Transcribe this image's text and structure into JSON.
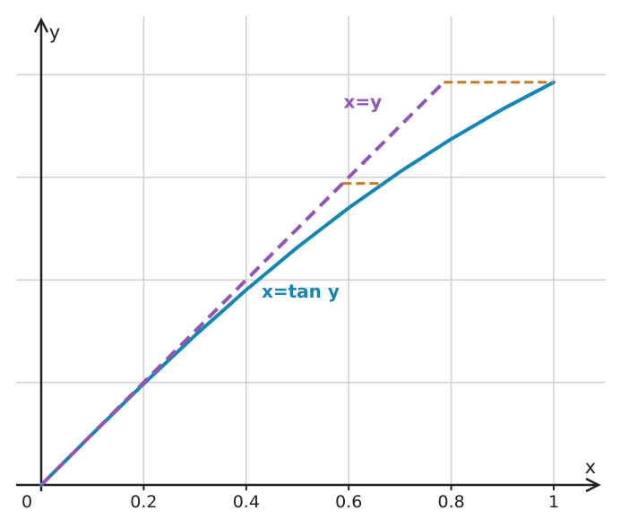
{
  "chart_data": {
    "type": "line",
    "xlabel": "x",
    "ylabel": "y",
    "xlim": [
      0,
      1.08
    ],
    "ylim": [
      0,
      0.88
    ],
    "x_ticks": [
      0,
      0.2,
      0.4,
      0.6,
      0.8,
      1
    ],
    "x_tick_labels": [
      "0",
      "0.2",
      "0.4",
      "0.6",
      "0.8",
      "1"
    ],
    "y_gridlines": [
      0.2,
      0.4,
      0.6,
      0.8
    ],
    "grid": true,
    "series": [
      {
        "name": "x=tan y",
        "style": "solid",
        "color": "#0f87b8",
        "x": [
          0,
          0.1,
          0.2,
          0.3,
          0.4,
          0.5,
          0.6,
          0.7,
          0.8,
          0.9,
          1.0
        ],
        "y": [
          0,
          0.0997,
          0.1974,
          0.2915,
          0.3805,
          0.4636,
          0.5404,
          0.6107,
          0.6747,
          0.7328,
          0.7854
        ]
      },
      {
        "name": "x=y",
        "style": "dashed",
        "color": "#9355b8",
        "x": [
          0,
          0.7854
        ],
        "y": [
          0,
          0.7854
        ]
      }
    ],
    "horizontal_segments": [
      {
        "y": 0.588,
        "x_from": 0.588,
        "x_to": 0.6682,
        "color": "#c77a1e"
      },
      {
        "y": 0.7854,
        "x_from": 0.7854,
        "x_to": 1.0,
        "color": "#c77a1e"
      }
    ],
    "annotations": [
      {
        "text": "x=y",
        "x": 0.59,
        "y": 0.735,
        "color": "#9355b8"
      },
      {
        "text": "x=tan y",
        "x": 0.43,
        "y": 0.365,
        "color": "#0f87b8"
      }
    ]
  }
}
